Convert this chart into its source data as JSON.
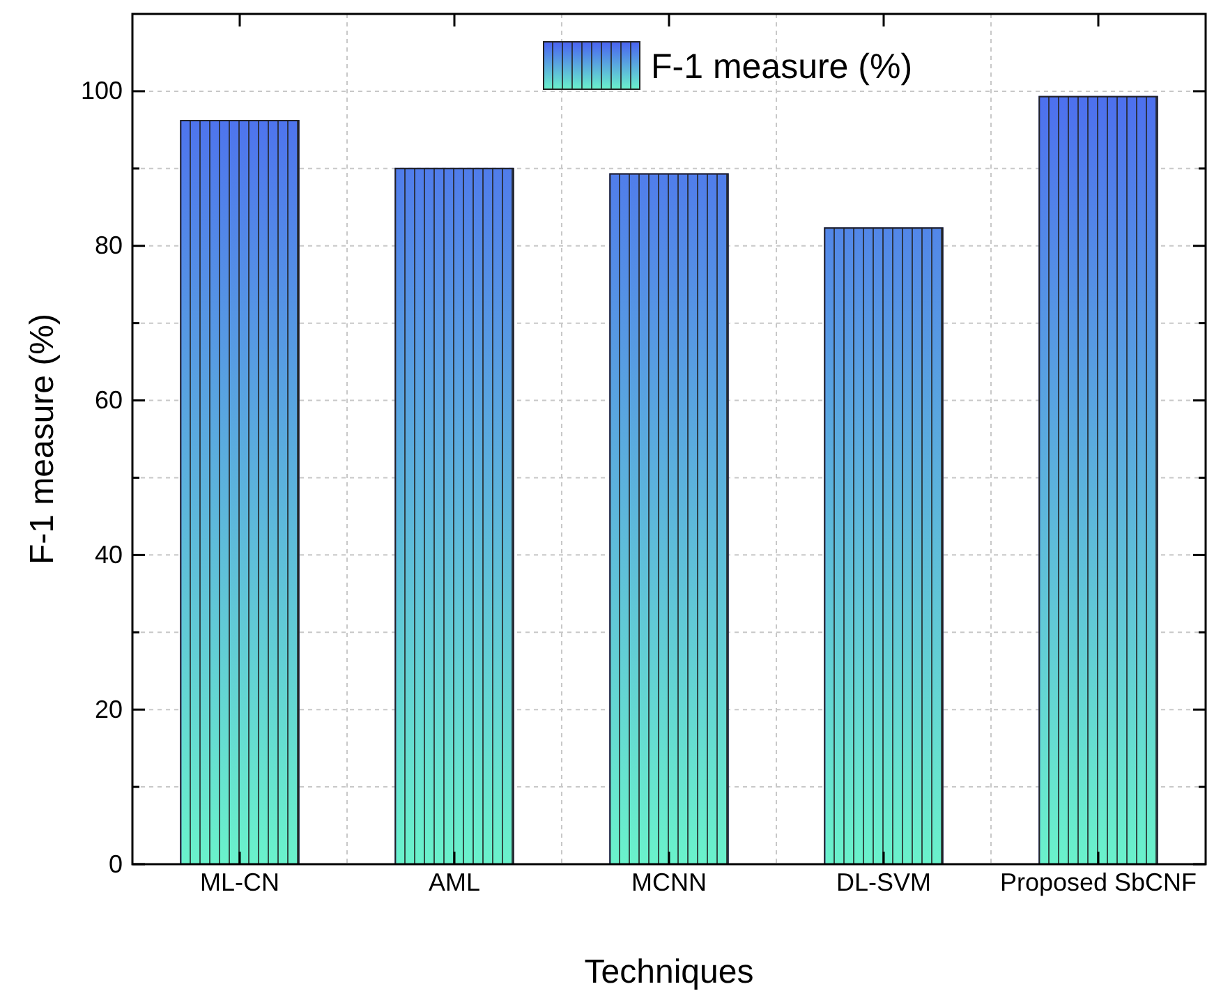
{
  "chart_data": {
    "type": "bar",
    "xlabel": "Techniques",
    "ylabel": "F-1 measure (%)",
    "categories": [
      "ML-CN",
      "AML",
      "MCNN",
      "DL-SVM",
      "Proposed SbCNF"
    ],
    "series": [
      {
        "name": "F-1 measure (%)",
        "color": "#4a62f2",
        "values": [
          96.2,
          90.0,
          89.3,
          82.3,
          99.3
        ]
      }
    ],
    "ylim": [
      0,
      110
    ],
    "yticks": [
      0,
      {
        "value": 10,
        "label": null
      },
      20,
      {
        "value": 30,
        "label": null
      },
      40,
      {
        "value": 50,
        "label": null
      },
      60,
      {
        "value": 70,
        "label": null
      },
      80,
      {
        "value": 90,
        "label": null
      },
      100
    ],
    "grid": true,
    "legend": "top"
  }
}
